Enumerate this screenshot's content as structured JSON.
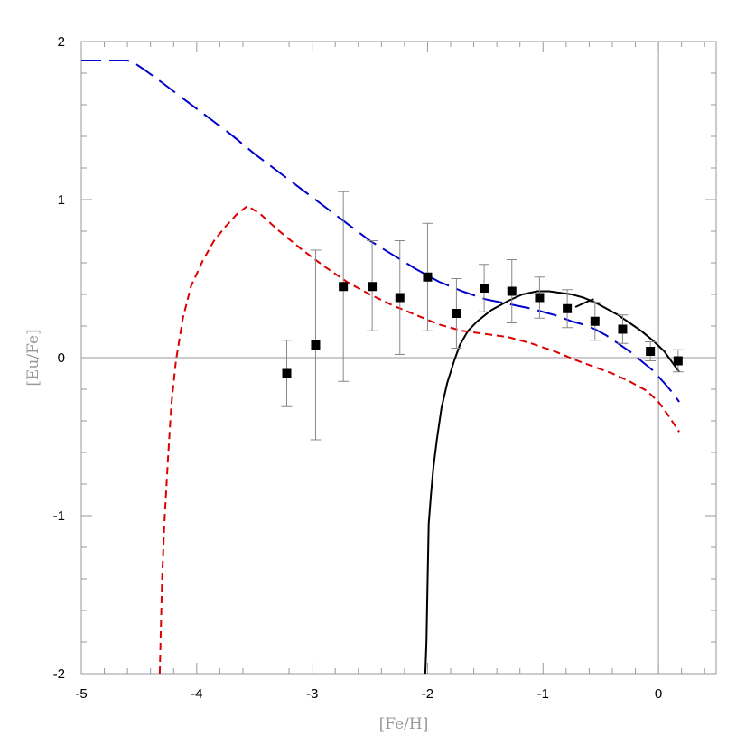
{
  "chart_data": {
    "type": "scatter",
    "title": "",
    "xlabel": "[Fe/H]",
    "ylabel": "[Eu/Fe]",
    "xlim": [
      -5,
      0.5
    ],
    "ylim": [
      -2,
      2
    ],
    "xticks": [
      -5,
      -4,
      -3,
      -2,
      -1,
      0
    ],
    "yticks": [
      -2,
      -1,
      0,
      1,
      2
    ],
    "grid": false,
    "reference_lines": {
      "x": 0,
      "y": 0
    },
    "colors": {
      "axis": "#999999",
      "points": "#000000",
      "errorbars": "#888888",
      "solid": "#000000",
      "long_dash": "#0000cc",
      "short_dash": "#dd0000"
    },
    "points": [
      {
        "x": -3.22,
        "y": -0.1,
        "err_low": 0.21,
        "err_high": 0.21
      },
      {
        "x": -2.97,
        "y": 0.08,
        "err_low": 0.6,
        "err_high": 0.6
      },
      {
        "x": -2.73,
        "y": 0.45,
        "err_low": 0.6,
        "err_high": 0.6
      },
      {
        "x": -2.48,
        "y": 0.45,
        "err_low": 0.28,
        "err_high": 0.29
      },
      {
        "x": -2.24,
        "y": 0.38,
        "err_low": 0.36,
        "err_high": 0.36
      },
      {
        "x": -2.0,
        "y": 0.51,
        "err_low": 0.34,
        "err_high": 0.34
      },
      {
        "x": -1.75,
        "y": 0.28,
        "err_low": 0.22,
        "err_high": 0.22
      },
      {
        "x": -1.51,
        "y": 0.44,
        "err_low": 0.15,
        "err_high": 0.15
      },
      {
        "x": -1.27,
        "y": 0.42,
        "err_low": 0.2,
        "err_high": 0.2
      },
      {
        "x": -1.03,
        "y": 0.38,
        "err_low": 0.13,
        "err_high": 0.13
      },
      {
        "x": -0.79,
        "y": 0.31,
        "err_low": 0.12,
        "err_high": 0.12
      },
      {
        "x": -0.55,
        "y": 0.23,
        "err_low": 0.12,
        "err_high": 0.12
      },
      {
        "x": -0.31,
        "y": 0.18,
        "err_low": 0.09,
        "err_high": 0.09
      },
      {
        "x": -0.07,
        "y": 0.04,
        "err_low": 0.06,
        "err_high": 0.06
      },
      {
        "x": 0.17,
        "y": -0.02,
        "err_low": 0.07,
        "err_high": 0.07
      }
    ],
    "series": [
      {
        "style": "solid",
        "x": [
          -2.02,
          -2.01,
          -2.0,
          -1.99,
          -1.97,
          -1.95,
          -1.92,
          -1.88,
          -1.83,
          -1.77,
          -1.72,
          -1.65,
          -1.57,
          -1.45,
          -1.3,
          -1.18,
          -1.05,
          -0.95,
          -0.85,
          -0.75,
          -0.65,
          -0.55,
          -0.45,
          -0.35,
          -0.25,
          -0.15,
          -0.05,
          0.05,
          0.12,
          0.18
        ],
        "y": [
          -2.0,
          -1.8,
          -1.4,
          -1.05,
          -0.86,
          -0.7,
          -0.52,
          -0.32,
          -0.16,
          -0.02,
          0.08,
          0.17,
          0.23,
          0.3,
          0.36,
          0.4,
          0.42,
          0.42,
          0.41,
          0.4,
          0.38,
          0.35,
          0.31,
          0.27,
          0.22,
          0.17,
          0.11,
          0.04,
          -0.03,
          -0.09
        ]
      },
      {
        "style": "solid",
        "x": [
          -0.72,
          -0.66,
          -0.6,
          -0.56
        ],
        "y": [
          0.32,
          0.34,
          0.36,
          0.37
        ]
      },
      {
        "style": "long_dash",
        "x": [
          -5.0,
          -4.7,
          -4.6,
          -4.55,
          -4.45,
          -4.3,
          -4.1,
          -3.9,
          -3.7,
          -3.5,
          -3.3,
          -3.1,
          -2.9,
          -2.7,
          -2.5,
          -2.3,
          -2.1,
          -1.9,
          -1.7,
          -1.5,
          -1.3,
          -1.1,
          -0.9,
          -0.75,
          -0.65,
          -0.55,
          -0.45,
          -0.35,
          -0.25,
          -0.15,
          -0.05,
          0.05,
          0.12,
          0.18
        ],
        "y": [
          1.88,
          1.88,
          1.88,
          1.87,
          1.82,
          1.74,
          1.63,
          1.52,
          1.41,
          1.29,
          1.18,
          1.07,
          0.96,
          0.85,
          0.74,
          0.65,
          0.56,
          0.48,
          0.42,
          0.37,
          0.34,
          0.31,
          0.27,
          0.23,
          0.21,
          0.18,
          0.14,
          0.09,
          0.04,
          -0.02,
          -0.08,
          -0.16,
          -0.22,
          -0.28
        ]
      },
      {
        "style": "short_dash",
        "x": [
          -4.32,
          -4.31,
          -4.3,
          -4.28,
          -4.25,
          -4.22,
          -4.18,
          -4.12,
          -4.05,
          -3.95,
          -3.85,
          -3.75,
          -3.65,
          -3.56,
          -3.45,
          -3.3,
          -3.1,
          -2.9,
          -2.7,
          -2.5,
          -2.3,
          -2.1,
          -1.9,
          -1.7,
          -1.5,
          -1.3,
          -1.1,
          -0.9,
          -0.7,
          -0.55,
          -0.4,
          -0.25,
          -0.1,
          0.0,
          0.08,
          0.18
        ],
        "y": [
          -2.0,
          -1.7,
          -1.4,
          -1.05,
          -0.65,
          -0.3,
          -0.02,
          0.25,
          0.45,
          0.61,
          0.74,
          0.83,
          0.91,
          0.96,
          0.91,
          0.81,
          0.69,
          0.58,
          0.48,
          0.4,
          0.33,
          0.27,
          0.21,
          0.17,
          0.15,
          0.13,
          0.09,
          0.04,
          -0.02,
          -0.06,
          -0.1,
          -0.15,
          -0.21,
          -0.28,
          -0.36,
          -0.47
        ]
      }
    ]
  }
}
